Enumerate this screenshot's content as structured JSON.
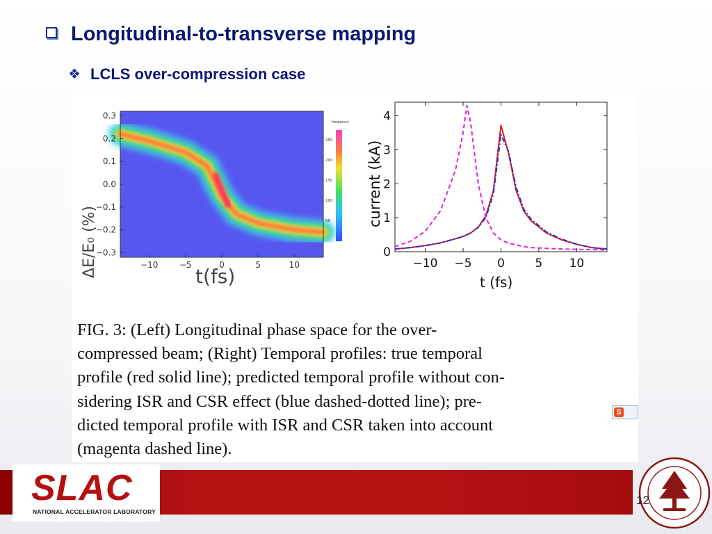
{
  "slide": {
    "title": "Longitudinal-to-transverse mapping",
    "subtitle": "LCLS over-compression case",
    "page_number": "12"
  },
  "figure": {
    "left_plot": {
      "ylabel": "ΔE/E₀ (%)",
      "xlabel": "t(fs)",
      "y_ticks": [
        "0.3",
        "0.2",
        "0.1",
        "0.0",
        "−0.1",
        "−0.2",
        "−0.3"
      ],
      "x_ticks": [
        "−10",
        "−5",
        "0",
        "5",
        "10"
      ],
      "colorbar_title": "frequency",
      "colorbar_ticks": [
        "250",
        "200",
        "150",
        "100",
        "50"
      ]
    },
    "right_plot": {
      "ylabel": "current (kA)",
      "xlabel": "t (fs)",
      "y_ticks": [
        "0",
        "1",
        "2",
        "3",
        "4"
      ],
      "x_ticks": [
        "−10",
        "−5",
        "0",
        "5",
        "10"
      ]
    },
    "caption_lines": [
      "FIG. 3: (Left) Longitudinal phase space for the over-",
      "compressed beam; (Right) Temporal profiles: true temporal",
      "profile (red solid line); predicted temporal profile without con-",
      "sidering ISR and CSR effect (blue dashed-dotted line); pre-",
      "dicted temporal profile with ISR and CSR taken into account",
      "(magenta dashed line)."
    ]
  },
  "footer": {
    "logo_text": "SLAC",
    "logo_subtext": "NATIONAL ACCELERATOR LABORATORY"
  },
  "chart_data": [
    {
      "type": "heatmap",
      "xlabel": "t(fs)",
      "ylabel": "ΔE/E₀ (%)",
      "xlim": [
        -14,
        14
      ],
      "ylim": [
        -0.32,
        0.32
      ],
      "ridge": {
        "t": [
          -14,
          -10,
          -5,
          -2,
          0,
          2,
          5,
          10,
          14
        ],
        "dE": [
          0.22,
          0.19,
          0.14,
          0.08,
          -0.05,
          -0.13,
          -0.17,
          -0.2,
          -0.21
        ]
      },
      "colorbar_range": [
        0,
        280
      ]
    },
    {
      "type": "line",
      "xlabel": "t (fs)",
      "ylabel": "current (kA)",
      "xlim": [
        -14,
        14
      ],
      "ylim": [
        0,
        4.4
      ],
      "x": [
        -14,
        -12,
        -10,
        -8,
        -6,
        -5,
        -4.5,
        -4,
        -3,
        -2,
        -1,
        0,
        1,
        2,
        3,
        4,
        6,
        8,
        10,
        12,
        14
      ],
      "series": [
        {
          "color": "#e02020",
          "style": "solid",
          "values": [
            0.08,
            0.12,
            0.18,
            0.26,
            0.38,
            0.45,
            0.5,
            0.55,
            0.72,
            1.05,
            1.8,
            3.72,
            2.9,
            1.8,
            1.2,
            0.9,
            0.55,
            0.35,
            0.22,
            0.12,
            0.08
          ]
        },
        {
          "color": "#2030d0",
          "style": "dashdot",
          "values": [
            0.08,
            0.12,
            0.18,
            0.26,
            0.38,
            0.45,
            0.5,
            0.55,
            0.72,
            1.0,
            1.7,
            3.45,
            2.95,
            1.9,
            1.25,
            0.95,
            0.58,
            0.37,
            0.22,
            0.12,
            0.08
          ]
        },
        {
          "color": "#e020e0",
          "style": "dashed",
          "values": [
            0.15,
            0.3,
            0.6,
            1.2,
            2.4,
            3.5,
            4.3,
            3.8,
            2.0,
            1.0,
            0.55,
            0.35,
            0.25,
            0.2,
            0.15,
            0.12,
            0.1,
            0.08,
            0.07,
            0.06,
            0.05
          ]
        }
      ]
    }
  ]
}
